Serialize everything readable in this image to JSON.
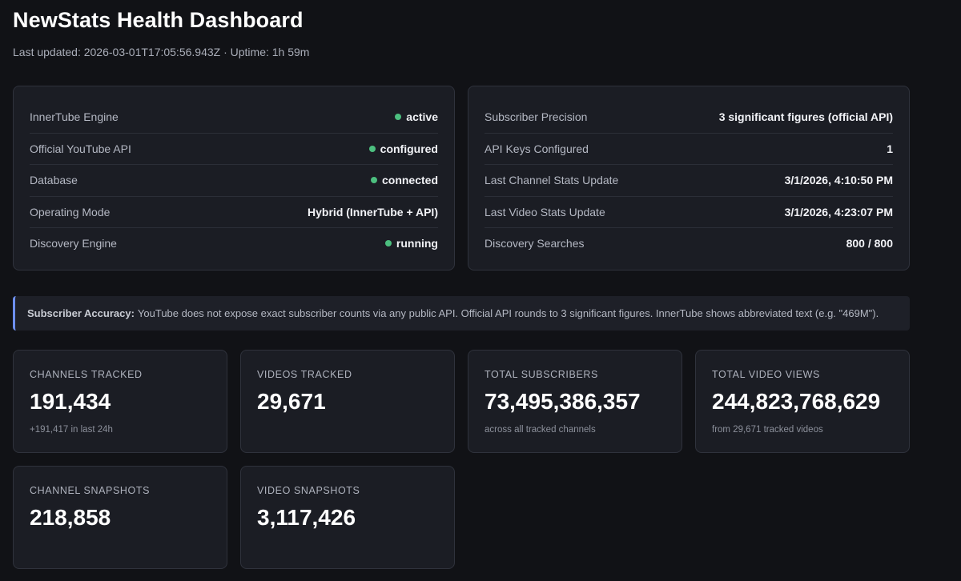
{
  "header": {
    "title": "NewStats Health Dashboard",
    "meta": "Last updated: 2026-03-01T17:05:56.943Z · Uptime: 1h 59m"
  },
  "colors": {
    "status_ok": "#4cbf7f",
    "accent": "#6d8ff0"
  },
  "status_panel": {
    "rows": [
      {
        "label": "InnerTube Engine",
        "value": "active",
        "dot": "status-dot-icon"
      },
      {
        "label": "Official YouTube API",
        "value": "configured",
        "dot": "status-dot-icon"
      },
      {
        "label": "Database",
        "value": "connected",
        "dot": "status-dot-icon"
      },
      {
        "label": "Operating Mode",
        "value": "Hybrid (InnerTube + API)"
      },
      {
        "label": "Discovery Engine",
        "value": "running",
        "dot": "status-dot-icon"
      }
    ]
  },
  "info_panel": {
    "rows": [
      {
        "label": "Subscriber Precision",
        "value": "3 significant figures (official API)"
      },
      {
        "label": "API Keys Configured",
        "value": "1"
      },
      {
        "label": "Last Channel Stats Update",
        "value": "3/1/2026, 4:10:50 PM"
      },
      {
        "label": "Last Video Stats Update",
        "value": "3/1/2026, 4:23:07 PM"
      },
      {
        "label": "Discovery Searches",
        "value": "800 / 800"
      }
    ]
  },
  "notice": {
    "title": "Subscriber Accuracy:",
    "text": "YouTube does not expose exact subscriber counts via any public API. Official API rounds to 3 significant figures. InnerTube shows abbreviated text (e.g. \"469M\")."
  },
  "stats": [
    {
      "label": "CHANNELS TRACKED",
      "value": "191,434",
      "sub": "+191,417 in last 24h"
    },
    {
      "label": "VIDEOS TRACKED",
      "value": "29,671",
      "sub": ""
    },
    {
      "label": "TOTAL SUBSCRIBERS",
      "value": "73,495,386,357",
      "sub": "across all tracked channels"
    },
    {
      "label": "TOTAL VIDEO VIEWS",
      "value": "244,823,768,629",
      "sub": "from 29,671 tracked videos"
    },
    {
      "label": "CHANNEL SNAPSHOTS",
      "value": "218,858",
      "sub": ""
    },
    {
      "label": "VIDEO SNAPSHOTS",
      "value": "3,117,426",
      "sub": ""
    }
  ]
}
